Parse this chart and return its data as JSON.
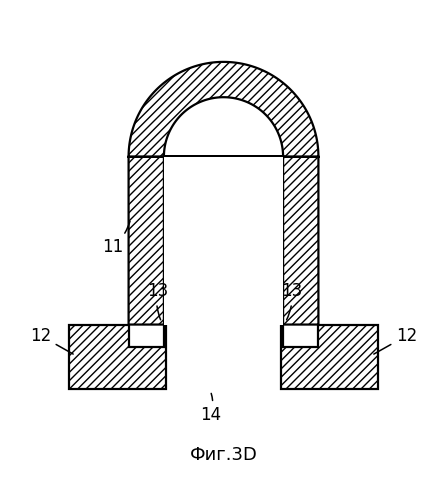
{
  "title": "Фиг.3D",
  "label_11": "11",
  "label_12_left": "12",
  "label_12_right": "12",
  "label_13_left": "13",
  "label_13_right": "13",
  "label_14": "14",
  "bg_color": "#ffffff",
  "line_color": "#000000",
  "line_width": 1.6,
  "figsize": [
    4.47,
    4.99
  ],
  "dpi": 100
}
